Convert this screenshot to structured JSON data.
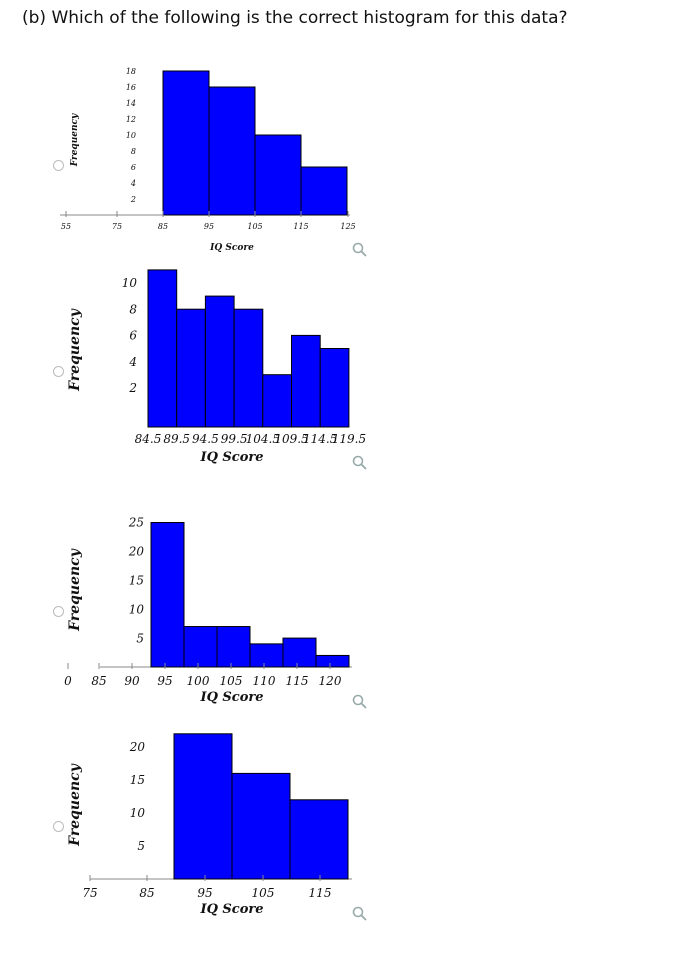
{
  "question": "(b) Which of the following is the correct histogram for this data?",
  "colors": {
    "bar": "#0000ff",
    "bar_border": "#000000"
  },
  "icons": {
    "option_radio": "radio-button",
    "zoom": "magnifier-icon"
  },
  "chart_data": [
    {
      "type": "bar",
      "ylabel": "Frequency",
      "xlabel": "IQ Score",
      "bins": [
        [
          85,
          95
        ],
        [
          95,
          105
        ],
        [
          105,
          115
        ],
        [
          115,
          125
        ]
      ],
      "values": [
        18,
        16,
        10,
        6
      ],
      "y_ticks": [
        "2",
        "4",
        "6",
        "8",
        "10",
        "12",
        "14",
        "16",
        "18"
      ],
      "x_ticks": [
        "55",
        "75",
        "85",
        "95",
        "105",
        "115",
        "125"
      ]
    },
    {
      "type": "bar",
      "ylabel": "Frequency",
      "xlabel": "IQ Score",
      "bins": [
        [
          84.5,
          89.5
        ],
        [
          89.5,
          94.5
        ],
        [
          94.5,
          99.5
        ],
        [
          99.5,
          104.5
        ],
        [
          104.5,
          109.5
        ],
        [
          109.5,
          114.5
        ],
        [
          114.5,
          119.5
        ]
      ],
      "values": [
        11,
        8,
        9,
        8,
        3,
        6,
        5
      ],
      "y_ticks": [
        "2",
        "4",
        "6",
        "8",
        "10"
      ],
      "x_ticks": [
        "84.5",
        "89.5",
        "94.5",
        "99.5",
        "104.5",
        "109.5",
        "114.5",
        "119.5"
      ]
    },
    {
      "type": "bar",
      "ylabel": "Frequency",
      "xlabel": "IQ Score",
      "bins": [
        [
          90,
          95
        ],
        [
          95,
          100
        ],
        [
          100,
          105
        ],
        [
          105,
          110
        ],
        [
          110,
          115
        ],
        [
          115,
          120
        ]
      ],
      "values": [
        25,
        7,
        7,
        4,
        5,
        2
      ],
      "y_ticks": [
        "5",
        "10",
        "15",
        "20",
        "25"
      ],
      "x_ticks": [
        "0",
        "85",
        "90",
        "95",
        "100",
        "105",
        "110",
        "115",
        "120"
      ]
    },
    {
      "type": "bar",
      "ylabel": "Frequency",
      "xlabel": "IQ Score",
      "bins": [
        [
          90,
          100
        ],
        [
          100,
          110
        ],
        [
          110,
          120
        ]
      ],
      "values": [
        22,
        16,
        12
      ],
      "y_ticks": [
        "5",
        "10",
        "15",
        "20"
      ],
      "x_ticks": [
        "75",
        "85",
        "95",
        "105",
        "115"
      ]
    }
  ]
}
